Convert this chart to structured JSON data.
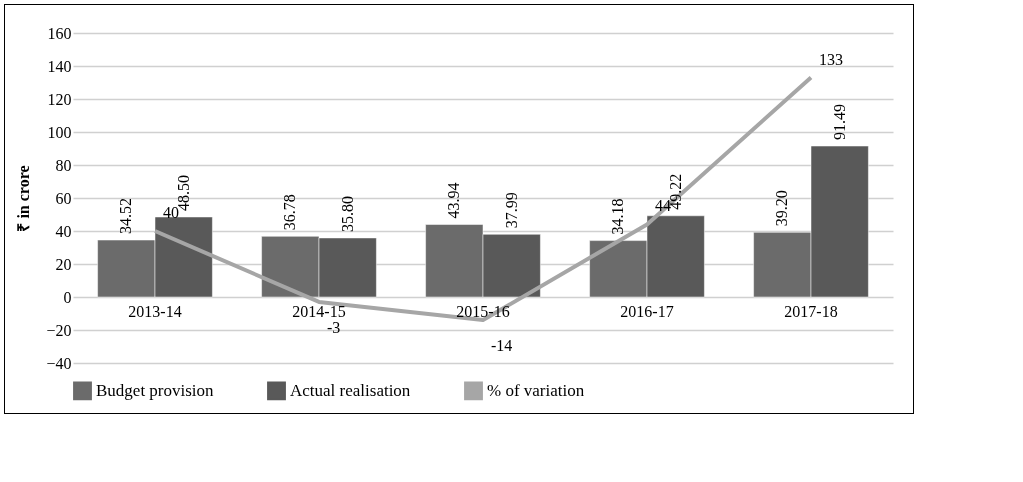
{
  "chart_data": {
    "type": "bar",
    "ylabel": "₹ in crore",
    "categories": [
      "2013-14",
      "2014-15",
      "2015-16",
      "2016-17",
      "2017-18"
    ],
    "series": [
      {
        "name": "Budget provision",
        "color": "#6b6b6b",
        "values": [
          34.52,
          36.78,
          43.94,
          34.18,
          39.2
        ],
        "value_labels": [
          "34.52",
          "36.78",
          "43.94",
          "34.18",
          "39.20"
        ]
      },
      {
        "name": "Actual realisation",
        "color": "#595959",
        "values": [
          48.5,
          35.8,
          37.99,
          49.22,
          91.49
        ],
        "value_labels": [
          "48.50",
          "35.80",
          "37.99",
          "49.22",
          "91.49"
        ]
      },
      {
        "name": "% of variation",
        "type": "line",
        "color": "#a6a6a6",
        "values": [
          40,
          -3,
          -14,
          44,
          133
        ],
        "value_labels": [
          "40",
          "-3",
          "-14",
          "44",
          "133"
        ]
      }
    ],
    "ylim": [
      -40,
      160
    ],
    "yticks": [
      -40,
      -20,
      0,
      20,
      40,
      60,
      80,
      100,
      120,
      140,
      160
    ],
    "grid": "y",
    "legend": "bottom"
  }
}
